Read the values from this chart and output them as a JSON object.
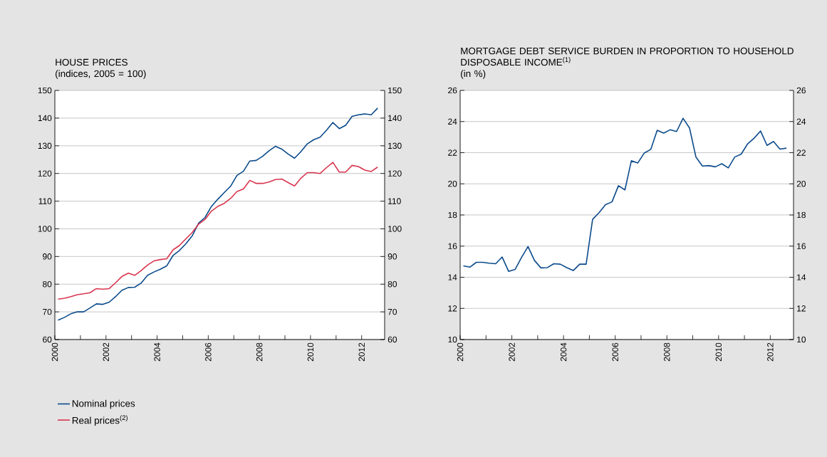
{
  "chart_data": [
    {
      "type": "line",
      "title": "HOUSE PRICES",
      "subtitle": "(indices, 2005 = 100)",
      "x": [
        2000.125,
        2000.375,
        2000.625,
        2000.875,
        2001.125,
        2001.375,
        2001.625,
        2001.875,
        2002.125,
        2002.375,
        2002.625,
        2002.875,
        2003.125,
        2003.375,
        2003.625,
        2003.875,
        2004.125,
        2004.375,
        2004.625,
        2004.875,
        2005.125,
        2005.375,
        2005.625,
        2005.875,
        2006.125,
        2006.375,
        2006.625,
        2006.875,
        2007.125,
        2007.375,
        2007.625,
        2007.875,
        2008.125,
        2008.375,
        2008.625,
        2008.875,
        2009.125,
        2009.375,
        2009.625,
        2009.875,
        2010.125,
        2010.375,
        2010.625,
        2010.875,
        2011.125,
        2011.375,
        2011.625,
        2011.875,
        2012.125,
        2012.375,
        2012.625
      ],
      "series": [
        {
          "name": "Nominal prices",
          "color": "#0b4a8b",
          "values": [
            67.0,
            68.0,
            69.3,
            70.0,
            70.0,
            71.4,
            72.9,
            72.7,
            73.5,
            75.5,
            77.8,
            78.8,
            78.9,
            80.4,
            83.2,
            84.4,
            85.4,
            86.6,
            90.4,
            92.2,
            94.6,
            97.5,
            102.1,
            104.1,
            108.1,
            110.7,
            113.1,
            115.4,
            119.3,
            120.8,
            124.5,
            124.7,
            126.2,
            128.2,
            129.8,
            128.8,
            127.0,
            125.5,
            127.9,
            130.7,
            132.2,
            133.1,
            135.6,
            138.4,
            136.2,
            137.4,
            140.6,
            141.2,
            141.5,
            141.2,
            143.6
          ]
        },
        {
          "name": "Real prices$^{(2)}$",
          "color": "#d9354f",
          "values": [
            74.6,
            74.9,
            75.5,
            76.2,
            76.5,
            76.9,
            78.4,
            78.2,
            78.4,
            80.5,
            82.8,
            84.0,
            83.2,
            84.9,
            86.9,
            88.4,
            88.9,
            89.2,
            92.4,
            94.0,
            96.4,
            98.7,
            101.7,
            103.4,
            106.4,
            108.1,
            109.2,
            111.0,
            113.5,
            114.4,
            117.5,
            116.4,
            116.4,
            116.9,
            117.8,
            118.0,
            116.7,
            115.5,
            118.3,
            120.3,
            120.3,
            120.0,
            122.1,
            124.0,
            120.5,
            120.5,
            122.9,
            122.5,
            121.2,
            120.7,
            122.3
          ]
        }
      ],
      "xlim": [
        2000,
        2012.9
      ],
      "xticks": [
        {
          "value": 2000,
          "label": "2000"
        },
        {
          "value": 2001,
          "label": null
        },
        {
          "value": 2002,
          "label": "2002"
        },
        {
          "value": 2003,
          "label": null
        },
        {
          "value": 2004,
          "label": "2004"
        },
        {
          "value": 2005,
          "label": null
        },
        {
          "value": 2006,
          "label": "2006"
        },
        {
          "value": 2007,
          "label": null
        },
        {
          "value": 2008,
          "label": "2008"
        },
        {
          "value": 2009,
          "label": null
        },
        {
          "value": 2010,
          "label": "2010"
        },
        {
          "value": 2011,
          "label": null
        },
        {
          "value": 2012,
          "label": "2012"
        }
      ],
      "ylim": [
        60,
        150
      ],
      "yticks": [
        60,
        70,
        80,
        90,
        100,
        110,
        120,
        130,
        140,
        150
      ],
      "y2lim": [
        60,
        150
      ],
      "y2ticks": [
        60,
        70,
        80,
        90,
        100,
        110,
        120,
        130,
        140,
        150
      ],
      "grid": "y",
      "legend": "bottom left"
    },
    {
      "type": "line",
      "title": "MORTGAGE DEBT SERVICE BURDEN IN PROPORTION TO HOUSEHOLD DISPOSABLE INCOME$^{(1)}$",
      "subtitle": "(in %)",
      "x": [
        2000.125,
        2000.375,
        2000.625,
        2000.875,
        2001.125,
        2001.375,
        2001.625,
        2001.875,
        2002.125,
        2002.375,
        2002.625,
        2002.875,
        2003.125,
        2003.375,
        2003.625,
        2003.875,
        2004.125,
        2004.375,
        2004.625,
        2004.875,
        2005.125,
        2005.375,
        2005.625,
        2005.875,
        2006.125,
        2006.375,
        2006.625,
        2006.875,
        2007.125,
        2007.375,
        2007.625,
        2007.875,
        2008.125,
        2008.375,
        2008.625,
        2008.875,
        2009.125,
        2009.375,
        2009.625,
        2009.875,
        2010.125,
        2010.375,
        2010.625,
        2010.875,
        2011.125,
        2011.375,
        2011.625,
        2011.875,
        2012.125,
        2012.375,
        2012.625
      ],
      "series": [
        {
          "color": "#0b4a8b",
          "values": [
            14.73,
            14.65,
            14.96,
            14.96,
            14.9,
            14.87,
            15.3,
            14.38,
            14.5,
            15.27,
            15.97,
            15.08,
            14.6,
            14.62,
            14.87,
            14.84,
            14.62,
            14.43,
            14.84,
            14.84,
            17.72,
            18.15,
            18.66,
            18.84,
            19.88,
            19.61,
            21.48,
            21.34,
            21.98,
            22.21,
            23.44,
            23.26,
            23.47,
            23.36,
            24.21,
            23.59,
            21.71,
            21.14,
            21.17,
            21.09,
            21.29,
            21.02,
            21.72,
            21.91,
            22.57,
            22.93,
            23.39,
            22.47,
            22.72,
            22.23,
            22.29
          ]
        }
      ],
      "xlim": [
        2000,
        2012.9
      ],
      "xticks": [
        {
          "value": 2000,
          "label": "2000"
        },
        {
          "value": 2001,
          "label": null
        },
        {
          "value": 2002,
          "label": "2002"
        },
        {
          "value": 2003,
          "label": null
        },
        {
          "value": 2004,
          "label": "2004"
        },
        {
          "value": 2005,
          "label": null
        },
        {
          "value": 2006,
          "label": "2006"
        },
        {
          "value": 2007,
          "label": null
        },
        {
          "value": 2008,
          "label": "2008"
        },
        {
          "value": 2009,
          "label": null
        },
        {
          "value": 2010,
          "label": "2010"
        },
        {
          "value": 2011,
          "label": null
        },
        {
          "value": 2012,
          "label": "2012"
        }
      ],
      "ylim": [
        10,
        26
      ],
      "yticks": [
        10,
        12,
        14,
        16,
        18,
        20,
        22,
        24,
        26
      ],
      "y2lim": [
        10,
        26
      ],
      "y2ticks": [
        10,
        12,
        14,
        16,
        18,
        20,
        22,
        24,
        26
      ],
      "grid": "y"
    }
  ]
}
